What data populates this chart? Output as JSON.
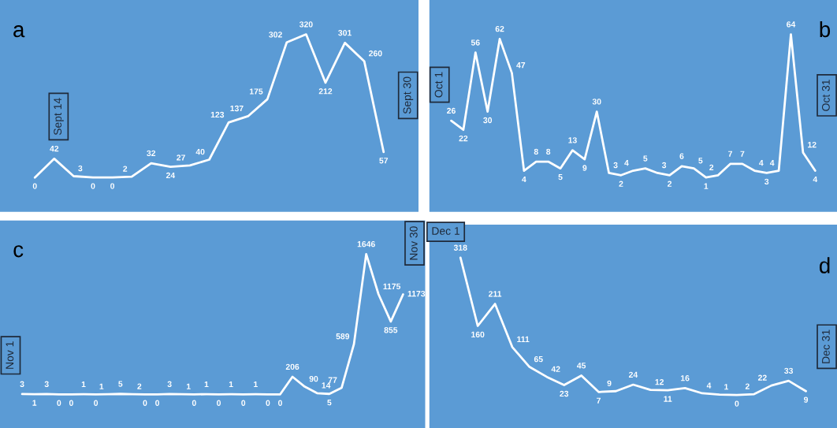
{
  "chart_data": [
    {
      "type": "line",
      "categories": [
        null,
        null,
        null,
        null,
        null,
        null,
        null,
        null,
        null,
        null,
        null,
        null,
        null,
        null,
        null,
        null,
        null,
        null,
        null
      ],
      "series": [
        {
          "color": "#ffffff",
          "values": [
            0,
            42,
            3,
            0,
            0,
            2,
            32,
            24,
            27,
            40,
            123,
            137,
            175,
            302,
            320,
            212,
            301,
            260,
            57
          ]
        }
      ],
      "data_labels": true,
      "tick_labels": false,
      "annotations": [
        "a",
        "Sept 14",
        "Sept 30"
      ]
    },
    {
      "type": "line",
      "categories": [
        null,
        null,
        null,
        null,
        null,
        null,
        null,
        null,
        null,
        null,
        null,
        null,
        null,
        null,
        null,
        null,
        null,
        null,
        null,
        null,
        null,
        null,
        null,
        null,
        null,
        null,
        null,
        null,
        null,
        null,
        null
      ],
      "series": [
        {
          "color": "#ffffff",
          "values": [
            26,
            22,
            56,
            30,
            62,
            47,
            4,
            8,
            8,
            5,
            13,
            9,
            30,
            3,
            2,
            4,
            5,
            3,
            2,
            6,
            5,
            1,
            2,
            7,
            7,
            4,
            3,
            4,
            64,
            12,
            4
          ]
        }
      ],
      "data_labels": true,
      "tick_labels": false,
      "annotations": [
        "b",
        "Oct 1",
        "Oct 31"
      ]
    },
    {
      "type": "line",
      "categories": [
        null,
        null,
        null,
        null,
        null,
        null,
        null,
        null,
        null,
        null,
        null,
        null,
        null,
        null,
        null,
        null,
        null,
        null,
        null,
        null,
        null,
        null,
        null,
        null,
        null,
        null,
        null,
        null,
        null,
        null,
        null,
        null
      ],
      "series": [
        {
          "color": "#ffffff",
          "values": [
            3,
            1,
            3,
            0,
            0,
            1,
            0,
            1,
            5,
            2,
            0,
            0,
            3,
            1,
            0,
            1,
            0,
            1,
            0,
            1,
            0,
            0,
            206,
            90,
            14,
            5,
            77,
            589,
            1646,
            1175,
            855,
            1173
          ]
        }
      ],
      "data_labels": true,
      "tick_labels": false,
      "annotations": [
        "c",
        "Nov 1",
        "Nov 30"
      ]
    },
    {
      "type": "line",
      "categories": [
        null,
        null,
        null,
        null,
        null,
        null,
        null,
        null,
        null,
        null,
        null,
        null,
        null,
        null,
        null,
        null,
        null,
        null,
        null,
        null,
        null
      ],
      "series": [
        {
          "color": "#ffffff",
          "values": [
            318,
            160,
            211,
            111,
            65,
            42,
            23,
            45,
            7,
            9,
            24,
            12,
            11,
            16,
            4,
            1,
            0,
            2,
            22,
            33,
            9
          ]
        }
      ],
      "data_labels": true,
      "tick_labels": false,
      "annotations": [
        "d",
        "Dec 1",
        "Dec 31"
      ]
    }
  ]
}
